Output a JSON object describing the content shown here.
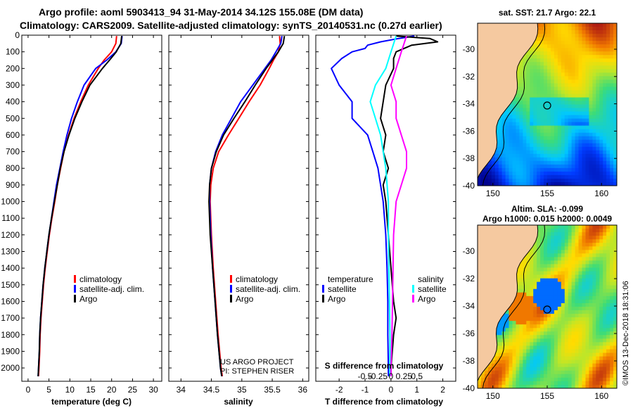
{
  "header": {
    "line1": "Argo profile: aoml 5903413_94 31-May-2014 34.12S 155.08E (DM data)",
    "line2": "Climatology: CARS2009. Satellite-adjusted climatology: synTS_20140531.nc (0.27d earlier)"
  },
  "depth_ticks": [
    "0",
    "100",
    "200",
    "300",
    "400",
    "500",
    "600",
    "700",
    "800",
    "900",
    "1000",
    "1100",
    "1200",
    "1300",
    "1400",
    "1500",
    "1600",
    "1700",
    "1800",
    "1900",
    "2000"
  ],
  "credit": {
    "line1": "US ARGO PROJECT",
    "line2": "PI: STEPHEN RISER"
  },
  "watermark": "©IMOS 13-Dec-2018 18:31:06",
  "colors": {
    "climatology": "#ff0000",
    "satellite": "#0000ff",
    "argo": "#000000",
    "sal_satellite": "#00ffff",
    "sal_climatology": "#ff00ff",
    "land": "#f5c9a0"
  },
  "chart_data": [
    {
      "type": "line",
      "name": "temperature",
      "xlabel": "temperature (deg C)",
      "ylabel": "",
      "xlim": [
        -1.5,
        32
      ],
      "ylim": [
        2080,
        0
      ],
      "xticks": [
        0,
        5,
        10,
        15,
        20,
        25,
        30
      ],
      "xtick_labels": [
        "0",
        "5",
        "10",
        "15",
        "20",
        "25",
        "30"
      ],
      "legend": [
        "climatology",
        "satellite-adj. clim.",
        "Argo"
      ],
      "series": [
        {
          "name": "climatology",
          "color": "#ff0000",
          "depth": [
            5,
            50,
            100,
            150,
            200,
            300,
            400,
            500,
            600,
            700,
            800,
            900,
            1000,
            1100,
            1200,
            1300,
            1400,
            1500,
            1600,
            1700,
            1800,
            1900,
            2000,
            2050
          ],
          "values": [
            21.2,
            21.0,
            20.0,
            18.2,
            16.8,
            14.4,
            12.6,
            11.0,
            9.7,
            8.6,
            7.8,
            7.0,
            6.4,
            5.7,
            5.1,
            4.6,
            4.1,
            3.7,
            3.4,
            3.1,
            2.9,
            2.8,
            2.6,
            2.5
          ]
        },
        {
          "name": "satellite-adj. clim.",
          "color": "#0000ff",
          "depth": [
            5,
            50,
            100,
            150,
            200,
            300,
            400,
            500,
            600,
            700,
            800,
            900,
            1000,
            1100,
            1200,
            1300,
            1400,
            1500,
            1600,
            1700,
            1800,
            1900,
            2000,
            2050
          ],
          "values": [
            22.5,
            22.3,
            21.0,
            18.8,
            16.2,
            13.4,
            11.8,
            10.4,
            9.3,
            8.4,
            7.6,
            6.8,
            6.2,
            5.6,
            5.0,
            4.5,
            4.0,
            3.6,
            3.3,
            3.0,
            2.8,
            2.7,
            2.5,
            2.4
          ]
        },
        {
          "name": "Argo",
          "color": "#000000",
          "depth": [
            5,
            50,
            100,
            150,
            200,
            300,
            400,
            500,
            600,
            700,
            800,
            900,
            1000,
            1100,
            1200,
            1300,
            1400,
            1500,
            1600,
            1700,
            1800,
            1900,
            2000,
            2050
          ],
          "values": [
            22.4,
            22.2,
            21.1,
            19.5,
            17.8,
            14.8,
            12.9,
            11.2,
            9.8,
            8.6,
            7.7,
            7.0,
            6.3,
            5.6,
            5.0,
            4.5,
            4.0,
            3.6,
            3.3,
            3.0,
            2.8,
            2.7,
            2.5,
            2.4
          ]
        }
      ]
    },
    {
      "type": "line",
      "name": "salinity",
      "xlabel": "salinity",
      "ylabel": "",
      "xlim": [
        33.8,
        36.1
      ],
      "ylim": [
        2080,
        0
      ],
      "xticks": [
        34,
        34.5,
        35,
        35.5,
        36
      ],
      "xtick_labels": [
        "34",
        "34.5",
        "35",
        "35.5",
        "36"
      ],
      "legend": [
        "climatology",
        "satellite-adj. clim.",
        "Argo"
      ],
      "series": [
        {
          "name": "climatology",
          "color": "#ff0000",
          "depth": [
            5,
            50,
            100,
            150,
            200,
            300,
            400,
            500,
            600,
            700,
            800,
            900,
            1000,
            1200,
            1400,
            1600,
            1800,
            2000,
            2050
          ],
          "values": [
            35.62,
            35.63,
            35.6,
            35.52,
            35.45,
            35.3,
            35.12,
            34.95,
            34.78,
            34.62,
            34.53,
            34.49,
            34.48,
            34.5,
            34.53,
            34.57,
            34.61,
            34.66,
            34.68
          ]
        },
        {
          "name": "satellite-adj. clim.",
          "color": "#0000ff",
          "depth": [
            5,
            50,
            100,
            150,
            200,
            300,
            400,
            500,
            600,
            700,
            800,
            900,
            1000,
            1200,
            1400,
            1600,
            1800,
            2000,
            2050
          ],
          "values": [
            35.66,
            35.64,
            35.56,
            35.48,
            35.38,
            35.18,
            34.98,
            34.83,
            34.68,
            34.57,
            34.5,
            34.47,
            34.47,
            34.49,
            34.52,
            34.56,
            34.6,
            34.65,
            34.67
          ]
        },
        {
          "name": "Argo",
          "color": "#000000",
          "depth": [
            5,
            50,
            100,
            150,
            200,
            300,
            400,
            500,
            600,
            700,
            800,
            900,
            1000,
            1200,
            1400,
            1600,
            1800,
            2000,
            2050
          ],
          "values": [
            35.7,
            35.68,
            35.6,
            35.5,
            35.4,
            35.22,
            35.05,
            34.87,
            34.7,
            34.58,
            34.5,
            34.47,
            34.46,
            34.48,
            34.52,
            34.56,
            34.6,
            34.65,
            34.67
          ]
        }
      ]
    },
    {
      "type": "line",
      "name": "difference",
      "xlabel": "T difference from climatology",
      "ylabel": "",
      "xlim": [
        -2.9,
        2.5
      ],
      "ylim": [
        2080,
        0
      ],
      "xticks": [
        -2,
        -1,
        0,
        1,
        2
      ],
      "xtick_labels": [
        "-2",
        "-1",
        "0",
        "1",
        "2"
      ],
      "secondary_axis_label": "S difference from climatology",
      "secondary_ticks": [
        "-0.5",
        "-0.25",
        "0",
        "0.25",
        "0.5"
      ],
      "legend_left_title": "temperature",
      "legend_right_title": "salinity",
      "legend": [
        "satellite",
        "Argo",
        "satellite",
        "Argo"
      ],
      "series": [
        {
          "name": "temperature satellite",
          "color": "#0000ff",
          "depth": [
            5,
            20,
            40,
            60,
            80,
            100,
            140,
            200,
            300,
            400,
            500,
            600,
            700,
            800,
            900,
            1000,
            1200,
            1400,
            1600,
            1800,
            2000,
            2050
          ],
          "values": [
            0.9,
            0.3,
            -0.4,
            -0.9,
            -1.0,
            -1.5,
            -1.9,
            -2.3,
            -2.0,
            -1.5,
            -1.5,
            -0.9,
            -0.7,
            -0.5,
            -0.4,
            -0.3,
            -0.2,
            -0.15,
            -0.12,
            -0.12,
            -0.1,
            -0.1
          ]
        },
        {
          "name": "temperature Argo",
          "color": "#000000",
          "depth": [
            5,
            20,
            40,
            60,
            80,
            100,
            140,
            200,
            300,
            400,
            500,
            600,
            700,
            800,
            900,
            1000,
            1200,
            1400,
            1600,
            1700,
            1800,
            2000,
            2050
          ],
          "values": [
            0.2,
            1.5,
            1.8,
            0.8,
            0.5,
            0.2,
            0.1,
            0.1,
            -0.2,
            -0.3,
            -0.4,
            -0.2,
            -0.3,
            -0.1,
            -0.3,
            -0.2,
            -0.1,
            0.0,
            0.1,
            0.2,
            0.1,
            0.0,
            0.0
          ]
        },
        {
          "name": "salinity satellite",
          "color": "#00ffff",
          "depth": [
            5,
            100,
            200,
            300,
            400,
            500,
            600,
            800,
            1000,
            1200,
            1400,
            1600,
            1800,
            2000,
            2050
          ],
          "values": [
            0.1,
            0.0,
            -0.1,
            -0.3,
            -0.4,
            -0.3,
            -0.2,
            -0.1,
            -0.05,
            -0.05,
            -0.04,
            -0.03,
            -0.02,
            -0.02,
            -0.02
          ]
        },
        {
          "name": "salinity Argo",
          "color": "#ff00ff",
          "depth": [
            5,
            100,
            200,
            300,
            400,
            500,
            600,
            700,
            800,
            900,
            1000,
            1200,
            1400,
            1600,
            1800,
            2000,
            2050
          ],
          "values": [
            0.3,
            0.2,
            0.1,
            0.0,
            0.1,
            0.1,
            0.2,
            0.3,
            0.3,
            0.2,
            0.1,
            0.05,
            0.04,
            0.03,
            0.02,
            0.0,
            0.0
          ]
        }
      ]
    }
  ],
  "maps": [
    {
      "title": "sat. SST: 21.7 Argo: 22.1",
      "kind": "sst",
      "lon_ticks": [
        "150",
        "155",
        "160"
      ],
      "lat_ticks": [
        "-30",
        "-32",
        "-34",
        "-36",
        "-38",
        "-40"
      ]
    },
    {
      "title_line1": "Altim. SLA: -0.099",
      "title_line2": "Argo h1000: 0.015 h2000: 0.0049",
      "kind": "sla",
      "lon_ticks": [
        "150",
        "155",
        "160"
      ],
      "lat_ticks": [
        "-30",
        "-32",
        "-34",
        "-36",
        "-38",
        "-40"
      ]
    }
  ]
}
